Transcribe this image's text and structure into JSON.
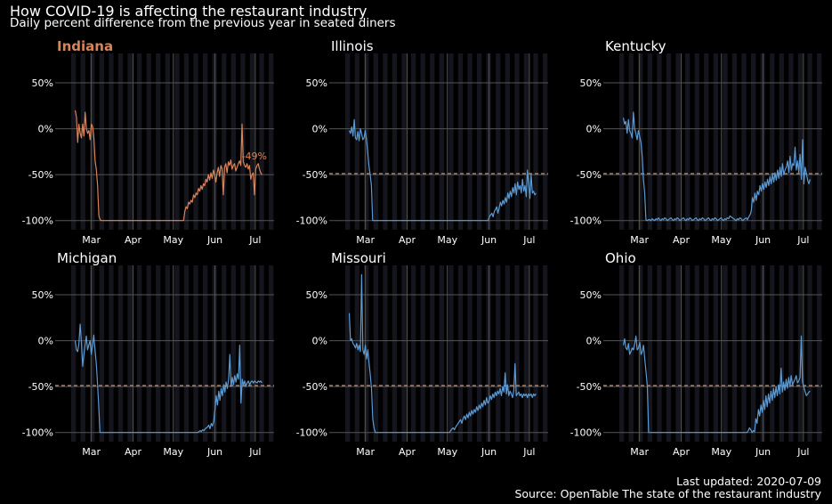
{
  "title": "How COVID-19 is affecting the restaurant industry",
  "subtitle": "Daily percent difference from the previous year in seated diners",
  "footer": {
    "updated": "Last updated: 2020-07-09",
    "source": "Source: OpenTable The state of the restaurant industry"
  },
  "colors": {
    "highlight": "#d9845a",
    "series": "#5b9bd5",
    "reference": "#a07a68",
    "grid": "#555555",
    "band": "#15151d",
    "text": "#ffffff"
  },
  "chart_data": {
    "type": "line",
    "x_ticks": [
      "Mar",
      "Apr",
      "May",
      "Jun",
      "Jul"
    ],
    "y_ticks": [
      "50%",
      "0%",
      "-50%",
      "-100%"
    ],
    "ylim": [
      -110,
      82
    ],
    "xlim": [
      "2020-02-15",
      "2020-07-15"
    ],
    "reference_value": -49,
    "reference_label": "-49%",
    "highlight_state": "Indiana",
    "panels": [
      {
        "state": "Indiana",
        "highlight": true,
        "values": [
          20,
          13,
          -15,
          5,
          -5,
          -10,
          5,
          -8,
          18,
          0,
          -5,
          -2,
          -12,
          5,
          2,
          -10,
          -35,
          -45,
          -62,
          -95,
          -99,
          -100,
          -100,
          -100,
          -100,
          -100,
          -100,
          -100,
          -100,
          -100,
          -100,
          -100,
          -100,
          -100,
          -100,
          -100,
          -100,
          -100,
          -100,
          -100,
          -100,
          -100,
          -100,
          -100,
          -100,
          -100,
          -100,
          -100,
          -100,
          -100,
          -100,
          -100,
          -100,
          -100,
          -100,
          -100,
          -100,
          -100,
          -100,
          -100,
          -100,
          -100,
          -100,
          -100,
          -100,
          -100,
          -100,
          -100,
          -100,
          -100,
          -100,
          -100,
          -100,
          -100,
          -100,
          -100,
          -100,
          -100,
          -100,
          -100,
          -100,
          -100,
          -100,
          -100,
          -100,
          -100,
          -100,
          -100,
          -90,
          -85,
          -87,
          -80,
          -82,
          -78,
          -80,
          -72,
          -75,
          -70,
          -72,
          -65,
          -68,
          -62,
          -66,
          -60,
          -62,
          -55,
          -58,
          -50,
          -56,
          -48,
          -54,
          -45,
          -50,
          -58,
          -48,
          -42,
          -52,
          -40,
          -44,
          -72,
          -42,
          -38,
          -48,
          -36,
          -40,
          -34,
          -44,
          -40,
          -38,
          -46,
          -42,
          -38,
          -35,
          -40,
          5,
          -36,
          -40,
          -42,
          -38,
          -44,
          -40,
          -55,
          -50,
          -48,
          -72,
          -44,
          -40,
          -38,
          -44,
          -48,
          -50
        ]
      },
      {
        "state": "Illinois",
        "highlight": false,
        "values": [
          -2,
          -5,
          2,
          -8,
          10,
          -10,
          -12,
          -3,
          -13,
          0,
          -5,
          -12,
          -10,
          -2,
          -12,
          -25,
          -40,
          -50,
          -62,
          -100,
          -100,
          -100,
          -100,
          -100,
          -100,
          -100,
          -100,
          -100,
          -100,
          -100,
          -100,
          -100,
          -100,
          -100,
          -100,
          -100,
          -100,
          -100,
          -100,
          -100,
          -100,
          -100,
          -100,
          -100,
          -100,
          -100,
          -100,
          -100,
          -100,
          -100,
          -100,
          -100,
          -100,
          -100,
          -100,
          -100,
          -100,
          -100,
          -100,
          -100,
          -100,
          -100,
          -100,
          -100,
          -100,
          -100,
          -100,
          -100,
          -100,
          -100,
          -100,
          -100,
          -100,
          -100,
          -100,
          -100,
          -100,
          -100,
          -100,
          -100,
          -100,
          -100,
          -100,
          -100,
          -100,
          -100,
          -100,
          -100,
          -100,
          -100,
          -100,
          -100,
          -100,
          -100,
          -100,
          -100,
          -100,
          -100,
          -100,
          -100,
          -100,
          -100,
          -100,
          -100,
          -100,
          -100,
          -100,
          -100,
          -100,
          -100,
          -100,
          -100,
          -100,
          -100,
          -96,
          -94,
          -92,
          -96,
          -90,
          -88,
          -85,
          -92,
          -86,
          -80,
          -84,
          -78,
          -82,
          -75,
          -80,
          -70,
          -76,
          -68,
          -74,
          -64,
          -70,
          -60,
          -72,
          -58,
          -66,
          -62,
          -70,
          -55,
          -68,
          -62,
          -74,
          -45,
          -60,
          -76,
          -50,
          -70,
          -68,
          -72,
          -70
        ]
      },
      {
        "state": "Kentucky",
        "highlight": false,
        "values": [
          12,
          5,
          8,
          -5,
          10,
          -2,
          -5,
          -10,
          18,
          0,
          -5,
          -12,
          -2,
          -8,
          -15,
          -30,
          -55,
          -70,
          -99,
          -100,
          -99,
          -99,
          -100,
          -98,
          -99,
          -100,
          -98,
          -99,
          -97,
          -99,
          -100,
          -98,
          -99,
          -97,
          -98,
          -100,
          -99,
          -98,
          -97,
          -99,
          -100,
          -98,
          -99,
          -97,
          -98,
          -100,
          -99,
          -98,
          -97,
          -99,
          -100,
          -98,
          -99,
          -97,
          -98,
          -100,
          -99,
          -98,
          -97,
          -99,
          -100,
          -98,
          -99,
          -97,
          -98,
          -100,
          -99,
          -98,
          -97,
          -99,
          -100,
          -98,
          -99,
          -97,
          -98,
          -100,
          -99,
          -98,
          -97,
          -99,
          -100,
          -98,
          -99,
          -97,
          -98,
          -95,
          -96,
          -97,
          -98,
          -99,
          -100,
          -98,
          -99,
          -97,
          -98,
          -100,
          -99,
          -98,
          -97,
          -99,
          -96,
          -94,
          -90,
          -75,
          -80,
          -70,
          -78,
          -68,
          -72,
          -62,
          -68,
          -60,
          -66,
          -58,
          -64,
          -55,
          -62,
          -52,
          -60,
          -50,
          -58,
          -48,
          -56,
          -45,
          -54,
          -42,
          -52,
          -38,
          -50,
          -45,
          -42,
          -35,
          -48,
          -30,
          -45,
          -38,
          -40,
          -20,
          -45,
          -35,
          -48,
          -28,
          -55,
          -12,
          -60,
          -42,
          -48,
          -56,
          -60,
          -55
        ]
      },
      {
        "state": "Michigan",
        "highlight": false,
        "values": [
          0,
          -10,
          -12,
          -3,
          18,
          -2,
          -28,
          -15,
          -5,
          5,
          -10,
          -5,
          0,
          -15,
          -5,
          6,
          -10,
          -25,
          -45,
          -70,
          -100,
          -100,
          -100,
          -100,
          -100,
          -100,
          -100,
          -100,
          -100,
          -100,
          -100,
          -100,
          -100,
          -100,
          -100,
          -100,
          -100,
          -100,
          -100,
          -100,
          -100,
          -100,
          -100,
          -100,
          -100,
          -100,
          -100,
          -100,
          -100,
          -100,
          -100,
          -100,
          -100,
          -100,
          -100,
          -100,
          -100,
          -100,
          -100,
          -100,
          -100,
          -100,
          -100,
          -100,
          -100,
          -100,
          -100,
          -100,
          -100,
          -100,
          -100,
          -100,
          -100,
          -100,
          -100,
          -100,
          -100,
          -100,
          -100,
          -100,
          -100,
          -100,
          -100,
          -100,
          -100,
          -100,
          -100,
          -100,
          -100,
          -100,
          -100,
          -100,
          -100,
          -100,
          -100,
          -100,
          -100,
          -100,
          -100,
          -100,
          -99,
          -98,
          -99,
          -97,
          -98,
          -96,
          -95,
          -94,
          -92,
          -96,
          -90,
          -93,
          -88,
          -75,
          -60,
          -70,
          -55,
          -65,
          -52,
          -60,
          -48,
          -56,
          -45,
          -52,
          -42,
          -15,
          -50,
          -40,
          -48,
          -38,
          -45,
          -36,
          -42,
          -5,
          -68,
          -42,
          -48,
          -44,
          -50,
          -46,
          -44,
          -48,
          -45,
          -44,
          -46,
          -44,
          -45,
          -46,
          -44,
          -45,
          -44,
          -46
        ]
      },
      {
        "state": "Missouri",
        "highlight": false,
        "values": [
          30,
          0,
          2,
          -3,
          -5,
          -8,
          -3,
          -10,
          -5,
          -12,
          72,
          -10,
          -15,
          -5,
          -20,
          -10,
          -25,
          -38,
          -52,
          -85,
          -95,
          -100,
          -100,
          -100,
          -100,
          -100,
          -100,
          -100,
          -100,
          -100,
          -100,
          -100,
          -100,
          -100,
          -100,
          -100,
          -100,
          -100,
          -100,
          -100,
          -100,
          -100,
          -100,
          -100,
          -100,
          -100,
          -100,
          -100,
          -100,
          -100,
          -100,
          -100,
          -100,
          -100,
          -100,
          -100,
          -100,
          -100,
          -100,
          -100,
          -100,
          -100,
          -100,
          -100,
          -100,
          -100,
          -100,
          -100,
          -100,
          -100,
          -100,
          -100,
          -100,
          -100,
          -100,
          -100,
          -100,
          -100,
          -100,
          -100,
          -100,
          -100,
          -98,
          -96,
          -95,
          -97,
          -94,
          -92,
          -90,
          -88,
          -86,
          -90,
          -85,
          -82,
          -86,
          -80,
          -84,
          -78,
          -82,
          -76,
          -80,
          -75,
          -78,
          -72,
          -76,
          -70,
          -74,
          -68,
          -72,
          -65,
          -70,
          -62,
          -68,
          -66,
          -60,
          -64,
          -58,
          -62,
          -56,
          -60,
          -55,
          -58,
          -52,
          -60,
          -50,
          -56,
          -35,
          -58,
          -48,
          -60,
          -55,
          -58,
          -62,
          -54,
          -25,
          -60,
          -58,
          -56,
          -60,
          -58,
          -62,
          -58,
          -60,
          -58,
          -62,
          -58,
          -60,
          -58,
          -62,
          -58,
          -60,
          -58
        ]
      },
      {
        "state": "Ohio",
        "highlight": false,
        "values": [
          -5,
          2,
          -8,
          -10,
          -3,
          -15,
          -12,
          -8,
          -10,
          -3,
          5,
          -10,
          -8,
          -2,
          -15,
          -12,
          -5,
          -20,
          -35,
          -50,
          -100,
          -100,
          -100,
          -100,
          -100,
          -100,
          -100,
          -100,
          -100,
          -100,
          -100,
          -100,
          -100,
          -100,
          -100,
          -100,
          -100,
          -100,
          -100,
          -100,
          -100,
          -100,
          -100,
          -100,
          -100,
          -100,
          -100,
          -100,
          -100,
          -100,
          -100,
          -100,
          -100,
          -100,
          -100,
          -100,
          -100,
          -100,
          -100,
          -100,
          -100,
          -100,
          -100,
          -100,
          -100,
          -100,
          -100,
          -100,
          -100,
          -100,
          -100,
          -100,
          -100,
          -100,
          -100,
          -100,
          -100,
          -100,
          -100,
          -100,
          -100,
          -100,
          -100,
          -100,
          -100,
          -100,
          -100,
          -100,
          -100,
          -100,
          -100,
          -100,
          -100,
          -100,
          -100,
          -100,
          -100,
          -100,
          -100,
          -98,
          -95,
          -97,
          -100,
          -98,
          -99,
          -85,
          -90,
          -75,
          -82,
          -70,
          -78,
          -65,
          -75,
          -60,
          -72,
          -58,
          -68,
          -55,
          -65,
          -52,
          -62,
          -50,
          -60,
          -48,
          -58,
          -30,
          -56,
          -45,
          -54,
          -42,
          -52,
          -40,
          -50,
          -38,
          -48,
          -45,
          -42,
          -38,
          -46,
          -44,
          -40,
          5,
          -45,
          -50,
          -55,
          -60,
          -58,
          -56,
          -55
        ]
      }
    ]
  }
}
